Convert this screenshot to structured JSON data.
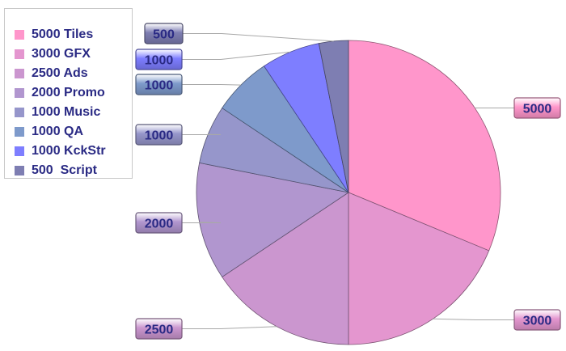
{
  "chart_data": {
    "type": "pie",
    "categories": [
      "Tiles",
      "GFX",
      "Ads",
      "Promo",
      "Music",
      "QA",
      "KckStr",
      "Script"
    ],
    "values": [
      5000,
      3000,
      2500,
      2000,
      1000,
      1000,
      1000,
      500
    ],
    "data_labels": [
      "5000",
      "3000",
      "2500",
      "2000",
      "1000",
      "1000",
      "1000",
      "500"
    ],
    "colors": [
      "#ff96cb",
      "#e496cf",
      "#cb96cf",
      "#b196cf",
      "#9696cb",
      "#7e9acb",
      "#7e7eff",
      "#7e7eb2"
    ],
    "legend": {
      "placement": "top-left",
      "entries": [
        "5000 Tiles",
        "3000 GFX",
        "2500 Ads",
        "2000 Promo",
        "1000 Music",
        "1000 QA",
        "1000 KckStr",
        "500  Script"
      ]
    },
    "start_angle": "12 o'clock",
    "direction": "clockwise"
  }
}
